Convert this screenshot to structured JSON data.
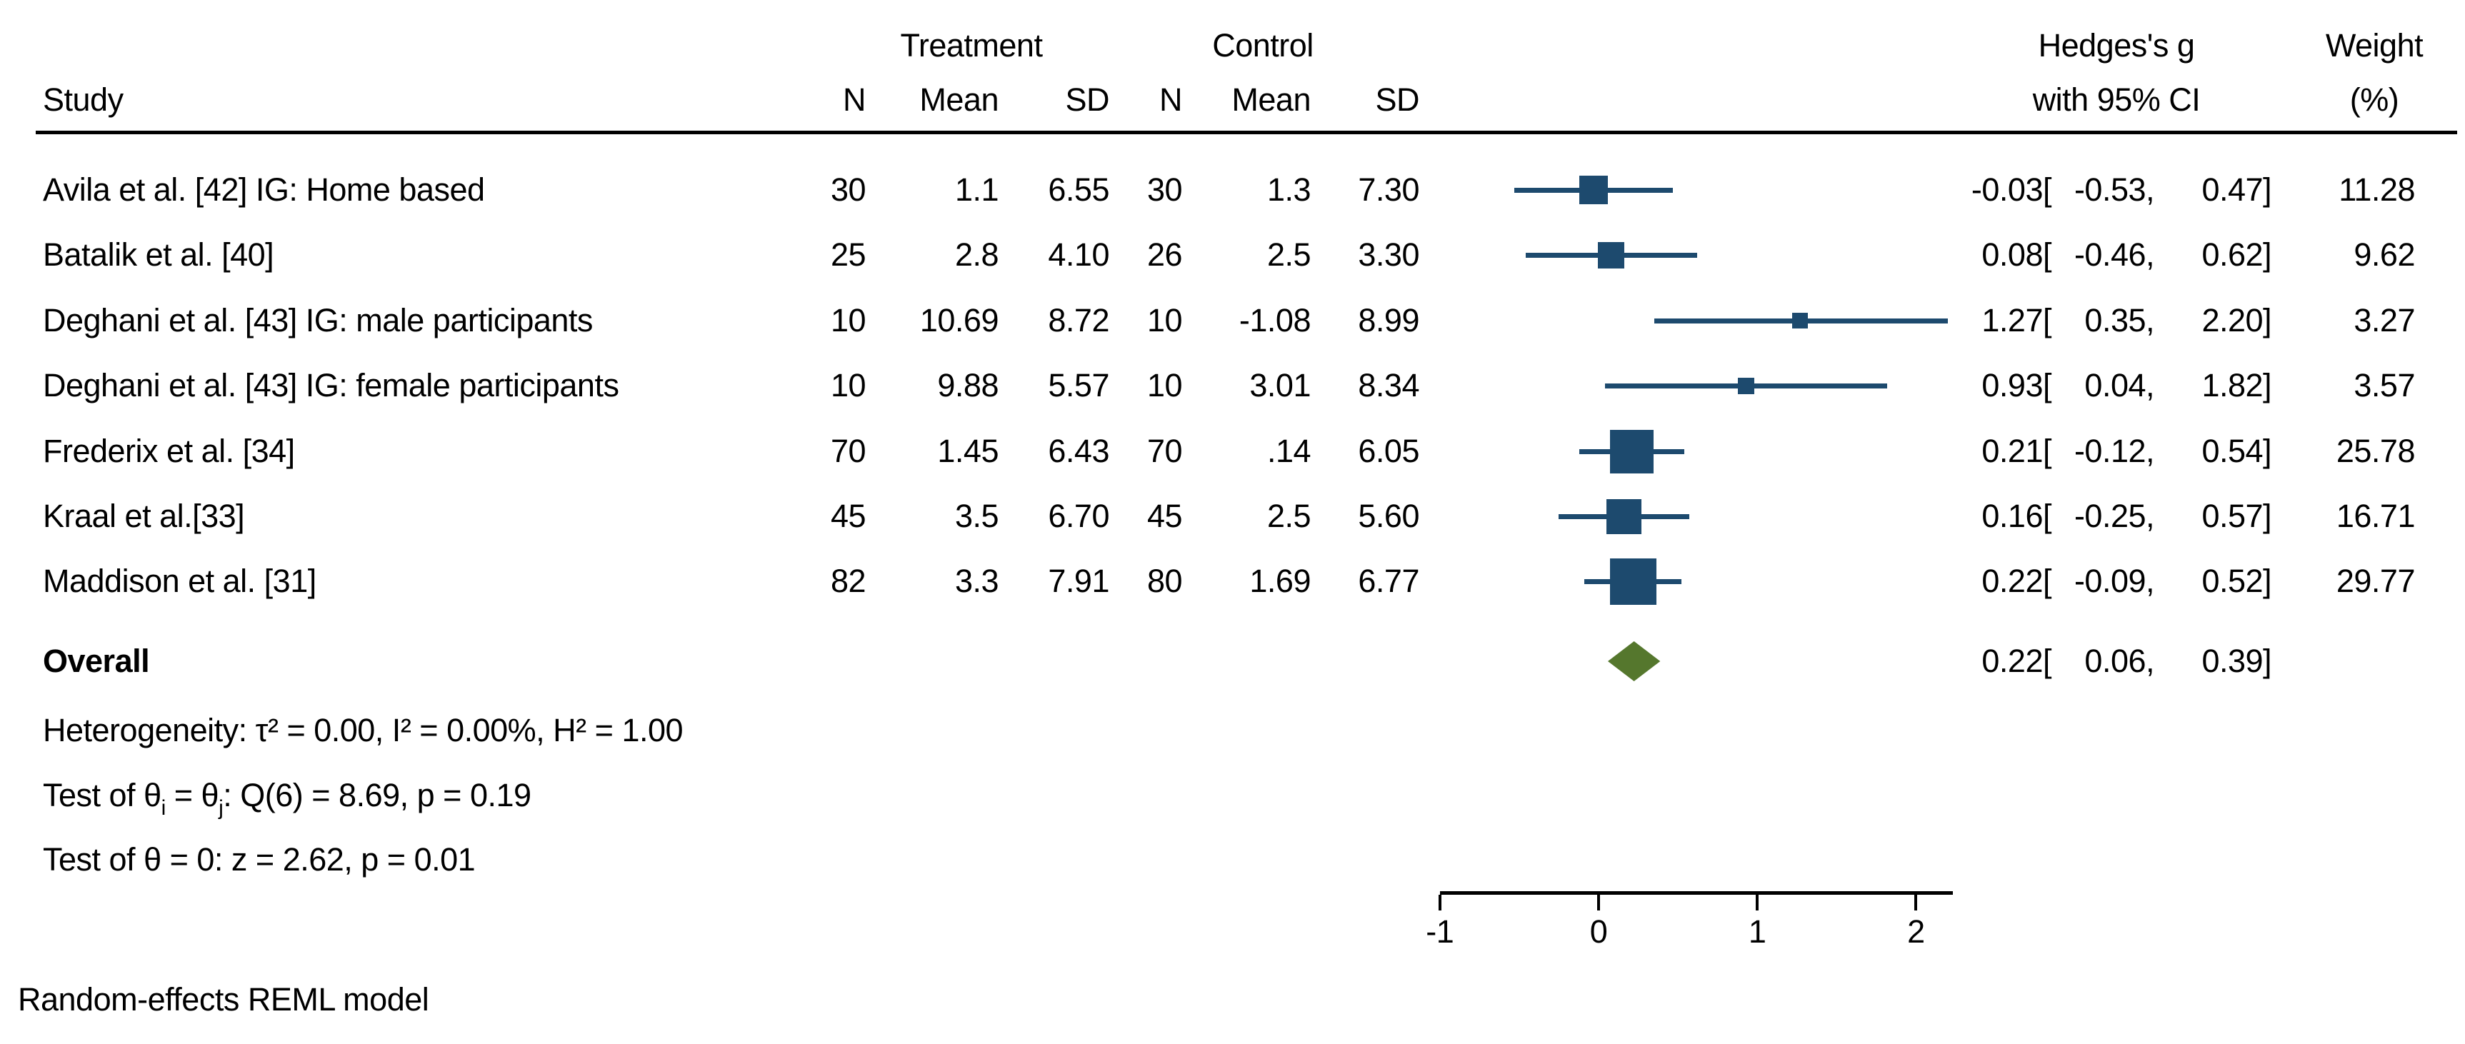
{
  "header": {
    "study": "Study",
    "treatment_group": "Treatment",
    "control_group": "Control",
    "n": "N",
    "mean": "Mean",
    "sd": "SD",
    "effect_line1": "Hedges's g",
    "effect_line2": "with 95% CI",
    "weight_line1": "Weight",
    "weight_line2": "(%)"
  },
  "punct": {
    "open": "[",
    "sep": ",",
    "close": "]"
  },
  "colors": {
    "marker_blue": "#1d4a6e",
    "diamond_green": "#55772d",
    "axis_black": "#000000"
  },
  "chart_data": {
    "type": "forest",
    "effect_measure": "Hedges's g with 95% CI",
    "x_ticks": [
      -1,
      0,
      1,
      2
    ],
    "x_axis_range": [
      -1,
      2.23
    ],
    "studies": [
      {
        "label": "Avila et al. [42] IG: Home based",
        "n_t": "30",
        "mean_t": "1.1",
        "sd_t": "6.55",
        "n_c": "30",
        "mean_c": "1.3",
        "sd_c": "7.30",
        "est": -0.03,
        "lo": -0.53,
        "hi": 0.47,
        "weight": 11.28
      },
      {
        "label": "Batalik et al. [40]",
        "n_t": "25",
        "mean_t": "2.8",
        "sd_t": "4.10",
        "n_c": "26",
        "mean_c": "2.5",
        "sd_c": "3.30",
        "est": 0.08,
        "lo": -0.46,
        "hi": 0.62,
        "weight": 9.62
      },
      {
        "label": "Deghani et al. [43] IG: male participants",
        "n_t": "10",
        "mean_t": "10.69",
        "sd_t": "8.72",
        "n_c": "10",
        "mean_c": "-1.08",
        "sd_c": "8.99",
        "est": 1.27,
        "lo": 0.35,
        "hi": 2.2,
        "weight": 3.27
      },
      {
        "label": "Deghani et al. [43] IG: female participants",
        "n_t": "10",
        "mean_t": "9.88",
        "sd_t": "5.57",
        "n_c": "10",
        "mean_c": "3.01",
        "sd_c": "8.34",
        "est": 0.93,
        "lo": 0.04,
        "hi": 1.82,
        "weight": 3.57
      },
      {
        "label": "Frederix et al. [34]",
        "n_t": "70",
        "mean_t": "1.45",
        "sd_t": "6.43",
        "n_c": "70",
        "mean_c": ".14",
        "sd_c": "6.05",
        "est": 0.21,
        "lo": -0.12,
        "hi": 0.54,
        "weight": 25.78
      },
      {
        "label": "Kraal et al.[33]",
        "n_t": "45",
        "mean_t": "3.5",
        "sd_t": "6.70",
        "n_c": "45",
        "mean_c": "2.5",
        "sd_c": "5.60",
        "est": 0.16,
        "lo": -0.25,
        "hi": 0.57,
        "weight": 16.71
      },
      {
        "label": "Maddison et al. [31]",
        "n_t": "82",
        "mean_t": "3.3",
        "sd_t": "7.91",
        "n_c": "80",
        "mean_c": "1.69",
        "sd_c": "6.77",
        "est": 0.22,
        "lo": -0.09,
        "hi": 0.52,
        "weight": 29.77
      }
    ],
    "overall": {
      "label": "Overall",
      "est": 0.22,
      "lo": 0.06,
      "hi": 0.39
    },
    "annotations": {
      "heterogeneity": "Heterogeneity: τ² = 0.00, I² = 0.00%, H² = 1.00",
      "test_group": {
        "pre": "Test of θ",
        "sub_i": "i",
        "mid": " = θ",
        "sub_j": "j",
        "post": ": Q(6) = 8.69, p = 0.19"
      },
      "test_zero": "Test of θ = 0: z = 2.62, p = 0.01",
      "footnote": "Random-effects REML model"
    }
  }
}
